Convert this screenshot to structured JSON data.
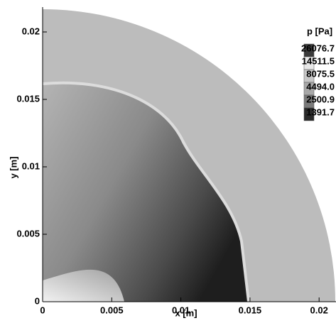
{
  "chart_data": {
    "type": "contour",
    "xlabel": "x [m]",
    "ylabel": "y [m]",
    "xlim": [
      0,
      0.0213
    ],
    "ylim": [
      0,
      0.0217
    ],
    "xticks": [
      0,
      0.005,
      0.01,
      0.015,
      0.02
    ],
    "yticks": [
      0,
      0.005,
      0.01,
      0.015,
      0.02
    ],
    "colorbar": {
      "title": "p [Pa]",
      "levels": [
        26076.7,
        14511.5,
        8075.5,
        {
          "value": 4494,
          "label": "4494.0"
        },
        2500.9,
        1391.7
      ]
    }
  }
}
